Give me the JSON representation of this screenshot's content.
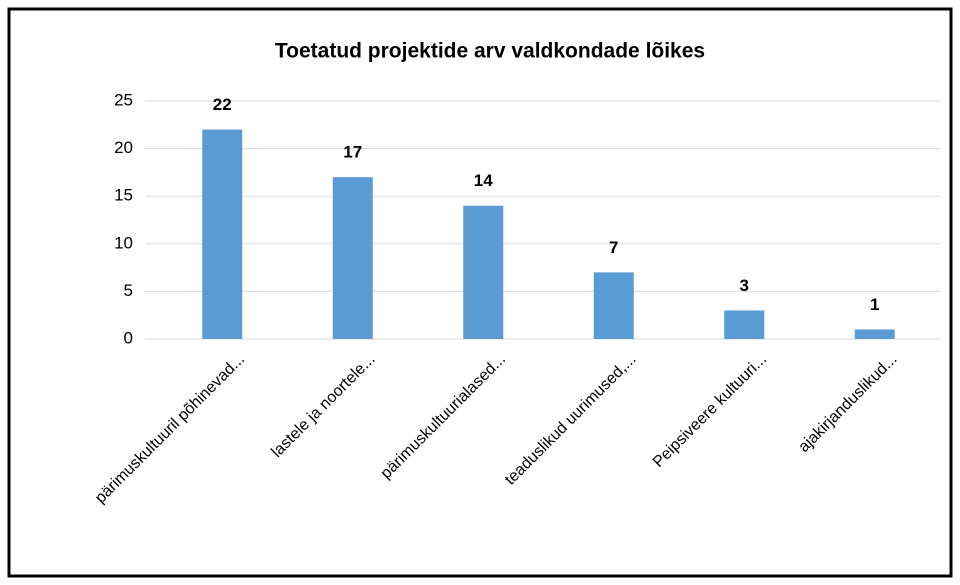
{
  "chart_data": {
    "type": "bar",
    "title": "Toetatud projektide arv valdkondade lõikes",
    "categories": [
      "pärimuskultuuril põhinevad...",
      "lastele ja noortele...",
      "pärimuskultuurialased...",
      "teaduslikud uurimused,...",
      "Peipsiveere kultuuri...",
      "ajakirjanduslikud..."
    ],
    "values": [
      22,
      17,
      14,
      7,
      3,
      1
    ],
    "color": "#5b9bd5",
    "ylim": [
      0,
      25
    ],
    "yticks": [
      0,
      5,
      10,
      15,
      20,
      25
    ],
    "grid": true
  }
}
